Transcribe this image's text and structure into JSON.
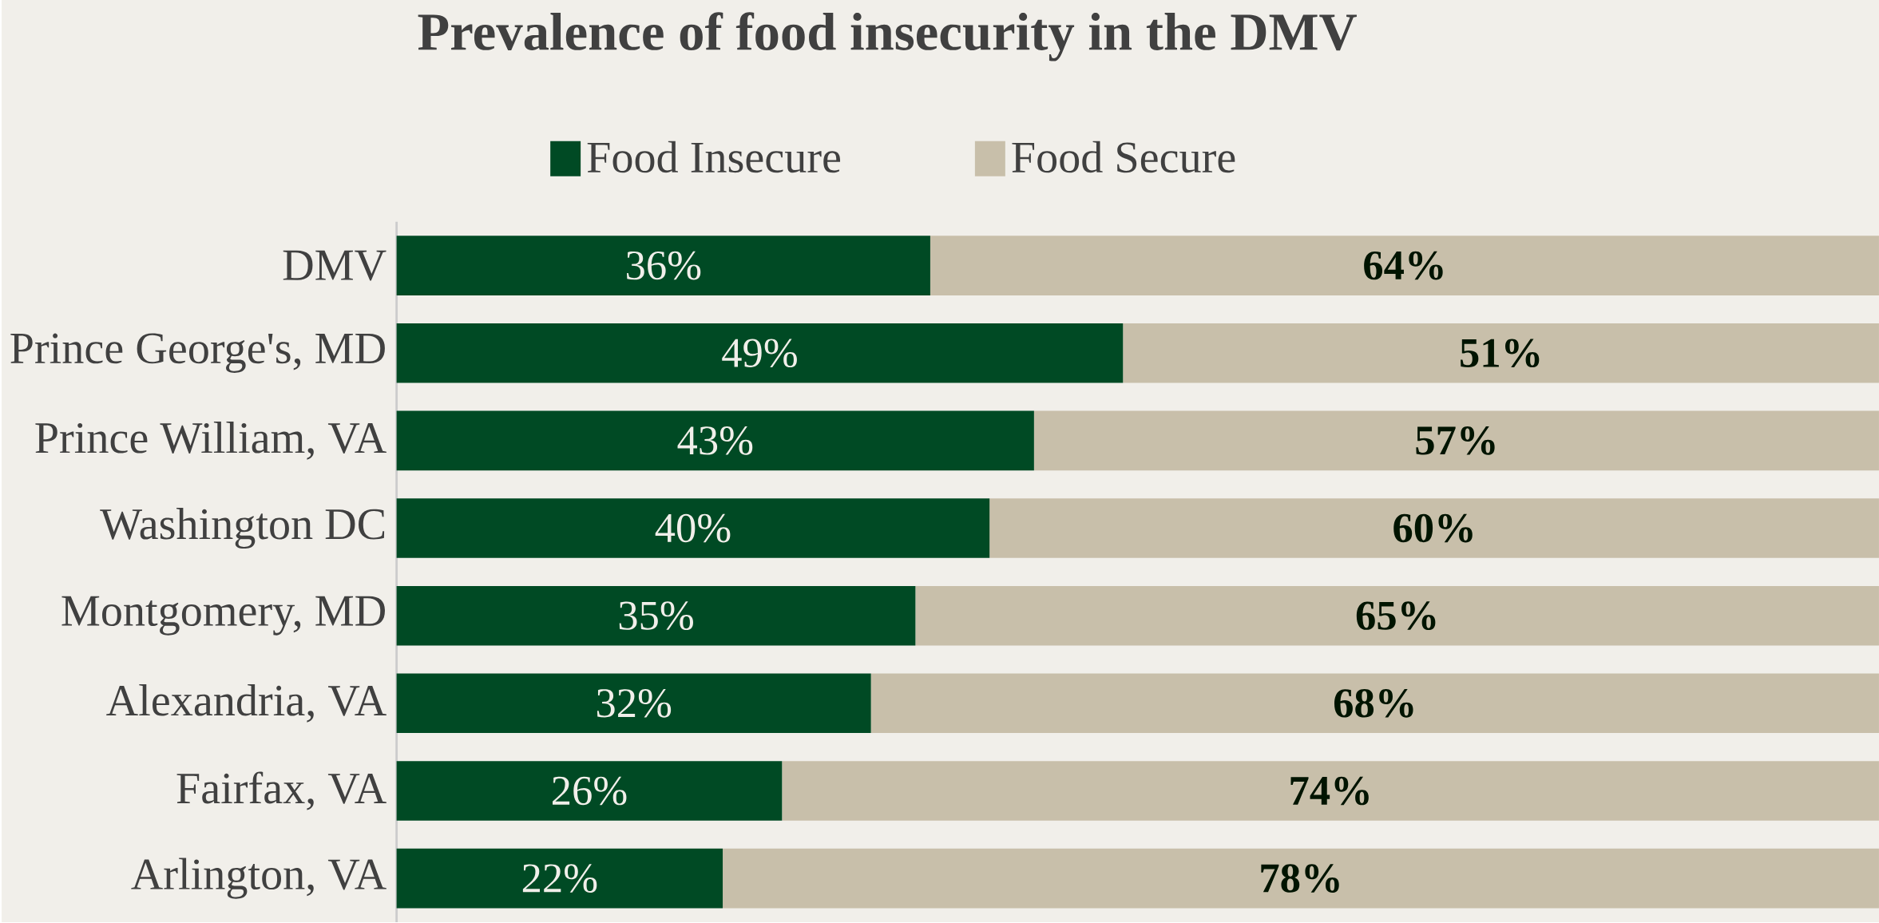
{
  "chart_data": {
    "type": "bar",
    "title": "Prevalence of food insecurity in the DMV",
    "orientation": "horizontal",
    "stacked": true,
    "legend": "top",
    "tick_labels": "y",
    "categories": [
      "DMV",
      "Prince George's, MD",
      "Prince William, VA",
      "Washington DC",
      "Montgomery, MD",
      "Alexandria, VA",
      "Fairfax, VA",
      "Arlington, VA"
    ],
    "series": [
      {
        "name": "Food Insecure",
        "color": "#004a24",
        "values": [
          36,
          49,
          43,
          40,
          35,
          32,
          26,
          22
        ],
        "value_labels": [
          "36%",
          "49%",
          "43%",
          "40%",
          "35%",
          "32%",
          "26%",
          "22%"
        ]
      },
      {
        "name": "Food Secure",
        "color": "#c8bfaa",
        "values": [
          64,
          51,
          57,
          60,
          65,
          68,
          74,
          78
        ],
        "value_labels": [
          "64%",
          "51%",
          "57%",
          "60%",
          "65%",
          "68%",
          "74%",
          "78%"
        ]
      }
    ]
  }
}
